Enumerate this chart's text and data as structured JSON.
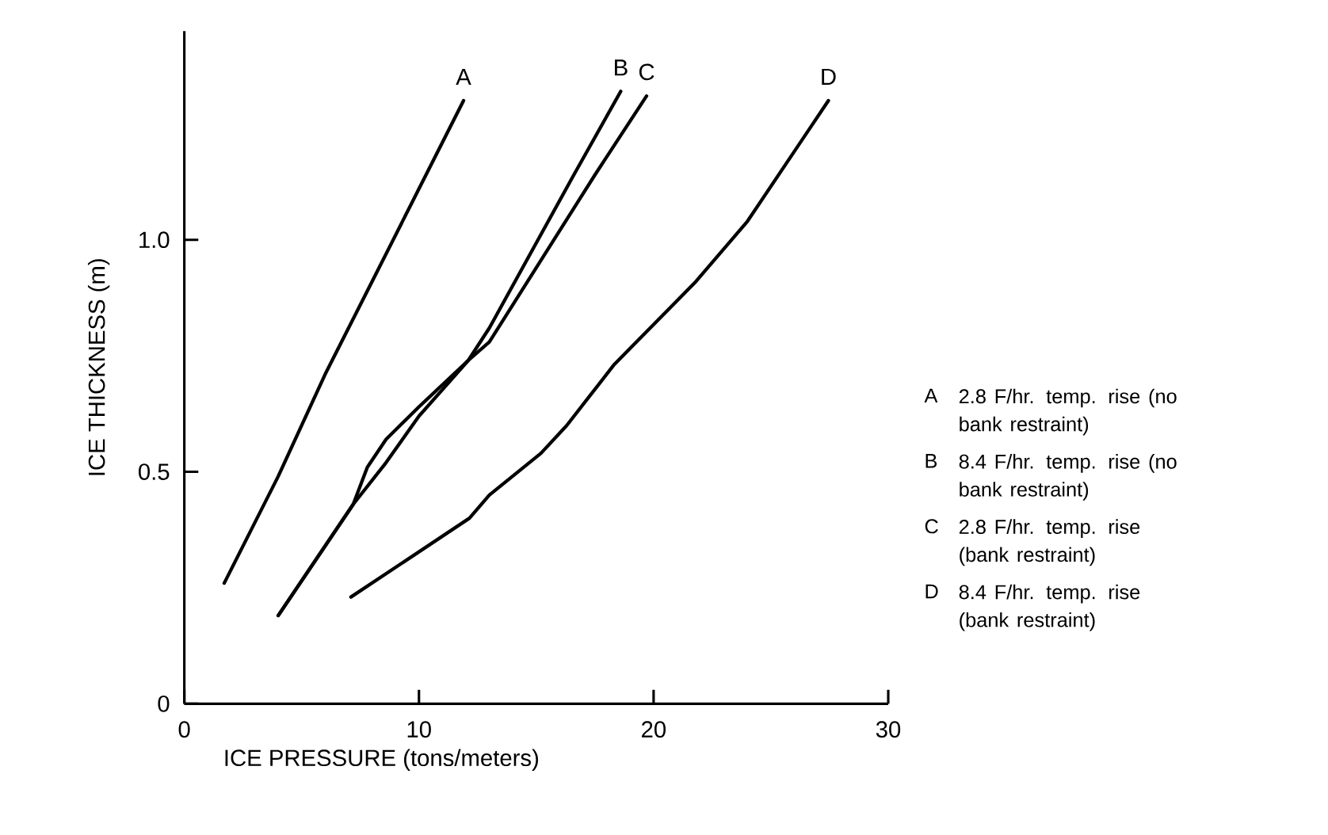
{
  "chart_data": {
    "type": "line",
    "xlabel": "ICE PRESSURE (tons/meters)",
    "ylabel": "ICE THICKNESS (m)",
    "xlim": [
      0,
      30
    ],
    "ylim": [
      0,
      1.45
    ],
    "xticks": [
      0,
      10,
      20,
      30
    ],
    "yticks": [
      0,
      0.5,
      {
        "value": 1,
        "label": "1.0"
      }
    ],
    "series": [
      {
        "name": "A",
        "color": "#000000",
        "x": [
          1.7,
          4,
          6,
          8,
          10,
          11.9
        ],
        "values": [
          0.26,
          0.49,
          0.71,
          0.91,
          1.11,
          1.3
        ]
      },
      {
        "name": "B",
        "color": "#000000",
        "x": [
          4,
          7.2,
          7.8,
          8.6,
          10,
          12.1,
          13,
          16.6,
          18.6
        ],
        "values": [
          0.19,
          0.43,
          0.51,
          0.57,
          0.64,
          0.74,
          0.81,
          1.14,
          1.32
        ]
      },
      {
        "name": "C",
        "color": "#000000",
        "x": [
          4,
          7.2,
          8.6,
          10,
          12.1,
          13,
          17.5,
          19.7
        ],
        "values": [
          0.19,
          0.43,
          0.52,
          0.62,
          0.74,
          0.78,
          1.14,
          1.31
        ]
      },
      {
        "name": "D",
        "color": "#000000",
        "x": [
          7.1,
          12.15,
          13,
          15.2,
          16.3,
          18.3,
          21.8,
          24,
          27.45
        ],
        "values": [
          0.23,
          0.4,
          0.45,
          0.54,
          0.6,
          0.73,
          0.91,
          1.04,
          1.3
        ]
      }
    ],
    "annotations": [
      "2.8 F/hr. temp. rise (no bank restraint)",
      "8.4 F/hr. temp. rise (no bank restraint)",
      "2.8 F/hr. temp. rise (bank restraint)",
      "8.4 F/hr. temp. rise (bank restraint)"
    ]
  }
}
